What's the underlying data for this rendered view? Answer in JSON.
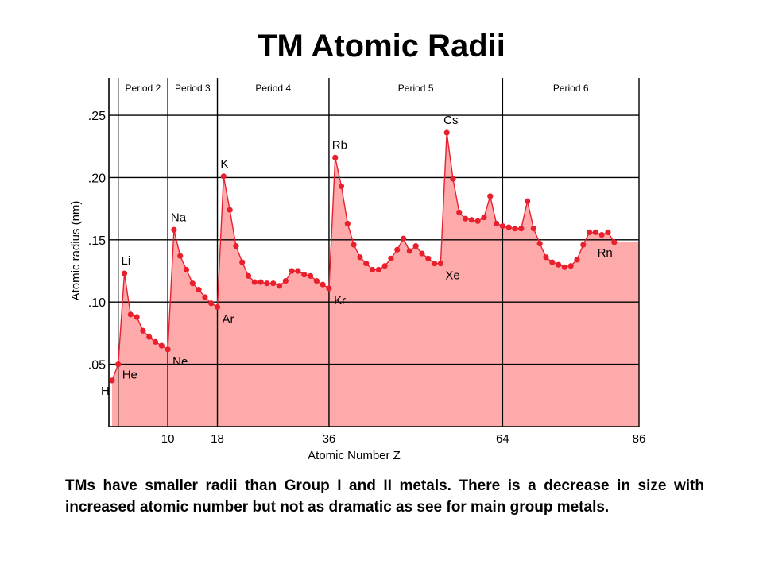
{
  "title": "TM Atomic Radii",
  "caption": "TMs have smaller radii than Group I and II metals.  There is a decrease in size with increased atomic number but not as dramatic as see for main group metals.",
  "colors": {
    "fill": "#ffaaaa",
    "line": "#e8202e",
    "point": "#e8202e",
    "grid": "#000000"
  },
  "chart_data": {
    "type": "area",
    "xlabel": "Atomic Number Z",
    "ylabel": "Atomic radius (nm)",
    "ylim": [
      0,
      0.28
    ],
    "xlim": [
      0.5,
      86
    ],
    "xticks": [
      10,
      18,
      36,
      64,
      86
    ],
    "yticks": [
      {
        "value": 0.05,
        "label": ".05"
      },
      {
        "value": 0.1,
        "label": ".10"
      },
      {
        "value": 0.15,
        "label": ".15"
      },
      {
        "value": 0.2,
        "label": ".20"
      },
      {
        "value": 0.25,
        "label": ".25"
      }
    ],
    "period_boundaries": [
      2,
      10,
      18,
      36,
      64,
      86
    ],
    "periods": [
      {
        "label": "Period 2",
        "from": 2,
        "to": 10
      },
      {
        "label": "Period 3",
        "from": 10,
        "to": 18
      },
      {
        "label": "Period 4",
        "from": 18,
        "to": 36
      },
      {
        "label": "Period 5",
        "from": 36,
        "to": 64
      },
      {
        "label": "Period 6",
        "from": 64,
        "to": 86
      }
    ],
    "grid": true,
    "series": [
      {
        "values": [
          [
            1,
            0.037
          ],
          [
            2,
            0.05
          ],
          [
            3,
            0.123
          ],
          [
            4,
            0.09
          ],
          [
            5,
            0.088
          ],
          [
            6,
            0.077
          ],
          [
            7,
            0.072
          ],
          [
            8,
            0.068
          ],
          [
            9,
            0.065
          ],
          [
            10,
            0.062
          ],
          [
            11,
            0.158
          ],
          [
            12,
            0.137
          ],
          [
            13,
            0.126
          ],
          [
            14,
            0.115
          ],
          [
            15,
            0.11
          ],
          [
            16,
            0.104
          ],
          [
            17,
            0.099
          ],
          [
            18,
            0.096
          ],
          [
            19,
            0.201
          ],
          [
            20,
            0.174
          ],
          [
            21,
            0.145
          ],
          [
            22,
            0.132
          ],
          [
            23,
            0.121
          ],
          [
            24,
            0.116
          ],
          [
            25,
            0.116
          ],
          [
            26,
            0.115
          ],
          [
            27,
            0.115
          ],
          [
            28,
            0.113
          ],
          [
            29,
            0.117
          ],
          [
            30,
            0.125
          ],
          [
            31,
            0.125
          ],
          [
            32,
            0.122
          ],
          [
            33,
            0.121
          ],
          [
            34,
            0.117
          ],
          [
            35,
            0.114
          ],
          [
            36,
            0.111
          ],
          [
            37,
            0.216
          ],
          [
            38,
            0.193
          ],
          [
            39,
            0.163
          ],
          [
            40,
            0.146
          ],
          [
            41,
            0.136
          ],
          [
            42,
            0.131
          ],
          [
            43,
            0.126
          ],
          [
            44,
            0.126
          ],
          [
            45,
            0.129
          ],
          [
            46,
            0.135
          ],
          [
            47,
            0.142
          ],
          [
            48,
            0.151
          ],
          [
            49,
            0.141
          ],
          [
            50,
            0.145
          ],
          [
            51,
            0.139
          ],
          [
            52,
            0.135
          ],
          [
            53,
            0.131
          ],
          [
            54,
            0.131
          ],
          [
            55,
            0.236
          ],
          [
            56,
            0.199
          ],
          [
            57,
            0.172
          ],
          [
            58,
            0.167
          ],
          [
            59,
            0.166
          ],
          [
            60,
            0.165
          ],
          [
            61,
            0.168
          ],
          [
            62,
            0.185
          ],
          [
            63,
            0.163
          ],
          [
            64,
            0.161
          ],
          [
            65,
            0.16
          ],
          [
            66,
            0.159
          ],
          [
            67,
            0.159
          ],
          [
            68,
            0.181
          ],
          [
            69,
            0.159
          ],
          [
            70,
            0.147
          ],
          [
            71,
            0.136
          ],
          [
            72,
            0.132
          ],
          [
            73,
            0.13
          ],
          [
            74,
            0.128
          ],
          [
            75,
            0.129
          ],
          [
            76,
            0.134
          ],
          [
            77,
            0.146
          ],
          [
            78,
            0.156
          ],
          [
            79,
            0.156
          ],
          [
            80,
            0.154
          ],
          [
            81,
            0.156
          ],
          [
            82,
            0.148
          ]
        ]
      }
    ],
    "annotations": [
      {
        "text": "H",
        "z": 1
      },
      {
        "text": "He",
        "z": 2
      },
      {
        "text": "Li",
        "z": 3
      },
      {
        "text": "Ne",
        "z": 10
      },
      {
        "text": "Na",
        "z": 11
      },
      {
        "text": "Ar",
        "z": 18
      },
      {
        "text": "K",
        "z": 19
      },
      {
        "text": "Kr",
        "z": 36
      },
      {
        "text": "Rb",
        "z": 37
      },
      {
        "text": "Xe",
        "z": 54
      },
      {
        "text": "Cs",
        "z": 55
      },
      {
        "text": "Rn",
        "z": 82
      }
    ]
  }
}
